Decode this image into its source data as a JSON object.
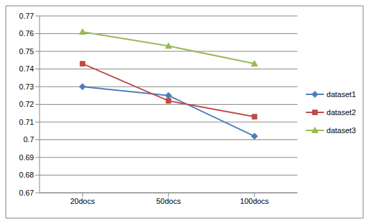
{
  "chart_data": {
    "type": "line",
    "categories": [
      "20docs",
      "50docs",
      "100docs"
    ],
    "series": [
      {
        "name": "dataset1",
        "color": "#4a7ebb",
        "marker": "diamond",
        "values": [
          0.73,
          0.725,
          0.702
        ]
      },
      {
        "name": "dataset2",
        "color": "#be4b48",
        "marker": "square",
        "values": [
          0.743,
          0.722,
          0.713
        ]
      },
      {
        "name": "dataset3",
        "color": "#98b954",
        "marker": "triangle",
        "values": [
          0.761,
          0.753,
          0.743
        ]
      }
    ],
    "ylim": [
      0.67,
      0.77
    ],
    "yticks": [
      0.67,
      0.68,
      0.69,
      0.7,
      0.71,
      0.72,
      0.73,
      0.74,
      0.75,
      0.76,
      0.77
    ],
    "grid": true,
    "legend": "right"
  }
}
